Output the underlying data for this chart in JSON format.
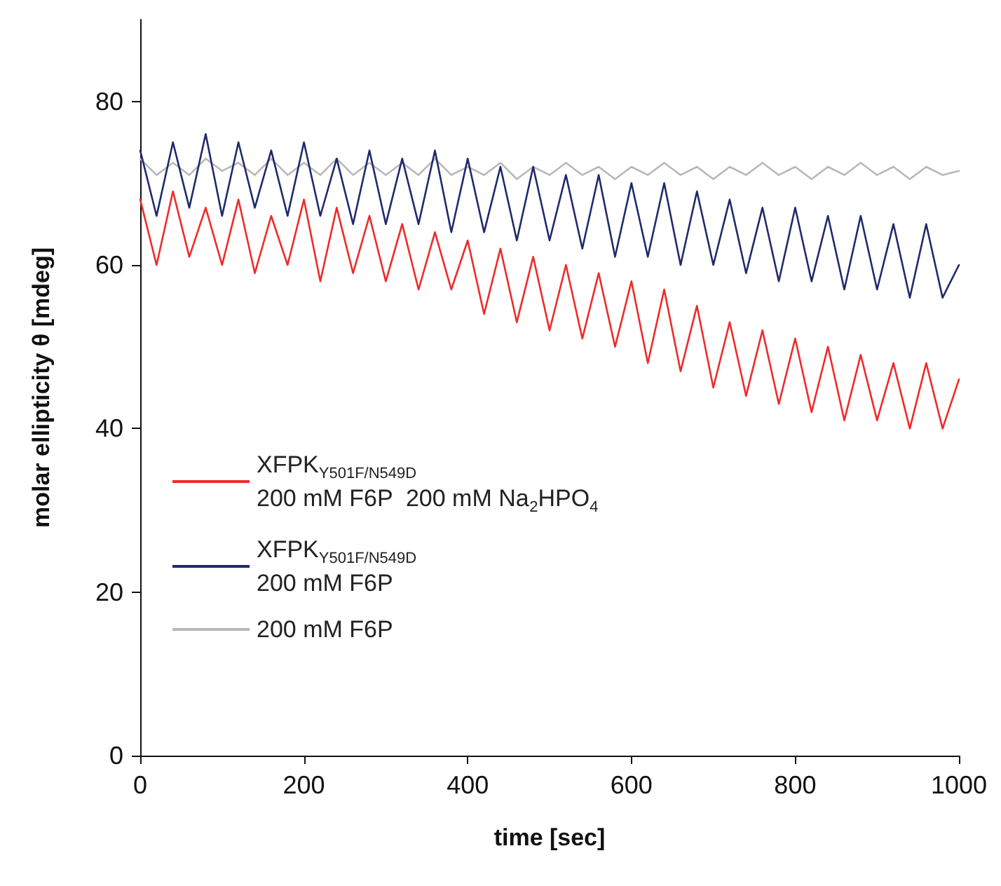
{
  "chart_data": {
    "type": "line",
    "xlabel": "time [sec]",
    "ylabel": "molar ellipticity θ [mdeg]",
    "x": [
      0,
      20,
      40,
      60,
      80,
      100,
      120,
      140,
      160,
      180,
      200,
      220,
      240,
      260,
      280,
      300,
      320,
      340,
      360,
      380,
      400,
      420,
      440,
      460,
      480,
      500,
      520,
      540,
      560,
      580,
      600,
      620,
      640,
      660,
      680,
      700,
      720,
      740,
      760,
      780,
      800,
      820,
      840,
      860,
      880,
      900,
      920,
      940,
      960,
      980,
      1000
    ],
    "series": [
      {
        "name": "XFPK$_{Y501F/N549D}$\n200 mM F6P  200 mM Na$_{2}$HPO$_{4}$",
        "color": "#ee2b2b",
        "values": [
          68,
          60,
          69,
          61,
          67,
          60,
          68,
          59,
          66,
          60,
          68,
          58,
          67,
          59,
          66,
          58,
          65,
          57,
          64,
          57,
          63,
          54,
          62,
          53,
          61,
          52,
          60,
          51,
          59,
          50,
          58,
          48,
          57,
          47,
          55,
          45,
          53,
          44,
          52,
          43,
          51,
          42,
          50,
          41,
          49,
          41,
          48,
          40,
          48,
          40,
          46
        ]
      },
      {
        "name": "XFPK$_{Y501F/N549D}$\n200 mM F6P",
        "color": "#1f2a6b",
        "values": [
          74,
          66,
          75,
          67,
          76,
          66,
          75,
          67,
          74,
          66,
          75,
          66,
          73,
          65,
          74,
          65,
          73,
          65,
          74,
          64,
          73,
          64,
          72,
          63,
          72,
          63,
          71,
          62,
          71,
          61,
          70,
          61,
          70,
          60,
          69,
          60,
          68,
          59,
          67,
          58,
          67,
          58,
          66,
          57,
          66,
          57,
          65,
          56,
          65,
          56,
          60
        ]
      },
      {
        "name": "200 mM F6P",
        "color": "#b8b8b8",
        "values": [
          73,
          71,
          72.5,
          71,
          73,
          71.5,
          72.5,
          71,
          73,
          71,
          72.5,
          71,
          73,
          71,
          72.5,
          71,
          72.5,
          71,
          73,
          71,
          72,
          71,
          72.5,
          70.5,
          72,
          71,
          72.5,
          71,
          72,
          70.5,
          72,
          71,
          72.5,
          71,
          72,
          70.5,
          72,
          71,
          72.5,
          71,
          72,
          70.5,
          72,
          71,
          72.5,
          71,
          72,
          70.5,
          72,
          71,
          71.5
        ]
      }
    ],
    "xlim": [
      0,
      1000
    ],
    "xticks": [
      0,
      200,
      400,
      600,
      800,
      1000
    ],
    "ylim": [
      0,
      90
    ],
    "yticks": [
      0,
      20,
      40,
      60,
      80
    ],
    "grid": false,
    "legend": "bottom left",
    "marker": "none",
    "line_style": "solid"
  }
}
